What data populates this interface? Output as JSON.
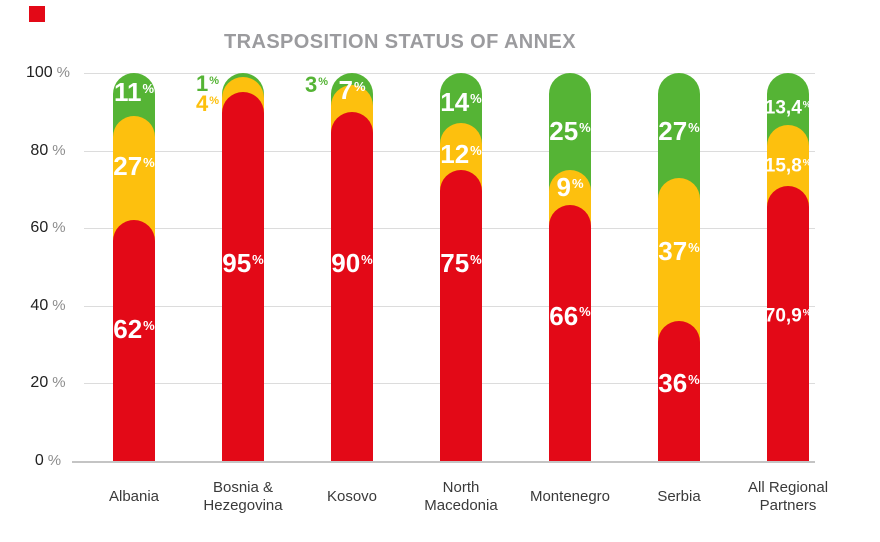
{
  "decor": {
    "corner_mark_color": "#E30917"
  },
  "chart_data": {
    "type": "stacked-bar-rounded",
    "title": "TRASPOSITION STATUS OF ANNEX",
    "title_color": "#9B9B9E",
    "categories": [
      [
        "Albania"
      ],
      [
        "Bosnia &",
        "Hezegovina"
      ],
      [
        "Kosovo"
      ],
      [
        "North",
        "Macedonia"
      ],
      [
        "Montenegro"
      ],
      [
        "Serbia"
      ],
      [
        "All Regional",
        "Partners"
      ]
    ],
    "series": [
      {
        "name": "red",
        "color": "#E30917",
        "values": [
          62,
          95,
          90,
          75,
          66,
          36,
          70.9
        ],
        "display": [
          "62",
          "95",
          "90",
          "75",
          "66",
          "36",
          "70,9"
        ]
      },
      {
        "name": "yellow",
        "color": "#FDC00E",
        "values": [
          27,
          4,
          7,
          12,
          9,
          37,
          15.8
        ],
        "display": [
          "27",
          "4",
          "7",
          "12",
          "9",
          "37",
          "15,8"
        ]
      },
      {
        "name": "green",
        "color": "#55B435",
        "values": [
          11,
          1,
          3,
          14,
          25,
          27,
          13.4
        ],
        "display": [
          "11",
          "1",
          "3",
          "14",
          "25",
          "27",
          "13,4"
        ]
      }
    ],
    "value_suffix": "%",
    "ylim": [
      0,
      100
    ],
    "y_ticks": [
      100,
      80,
      60,
      40,
      20,
      0
    ],
    "y_tick_suffix": "%",
    "grid": true,
    "legend": "none",
    "label_layout": [
      {
        "red": {
          "y": 34
        },
        "yellow": {
          "y": 76
        },
        "green": {
          "y": 95
        }
      },
      {
        "red": {
          "y": 51
        },
        "yellow": {
          "y": 92,
          "outside": true
        },
        "green": {
          "y": 97.2,
          "outside": true
        }
      },
      {
        "red": {
          "y": 51
        },
        "yellow": {
          "y": 95.5
        },
        "green": {
          "y": 97,
          "outside": true
        }
      },
      {
        "red": {
          "y": 51
        },
        "yellow": {
          "y": 79
        },
        "green": {
          "y": 92.5
        }
      },
      {
        "red": {
          "y": 37.5
        },
        "yellow": {
          "y": 70.5
        },
        "green": {
          "y": 85
        }
      },
      {
        "red": {
          "y": 20
        },
        "yellow": {
          "y": 54
        },
        "green": {
          "y": 85
        }
      },
      {
        "red": {
          "y": 37.5
        },
        "yellow": {
          "y": 76
        },
        "green": {
          "y": 91
        },
        "small": true
      }
    ]
  }
}
